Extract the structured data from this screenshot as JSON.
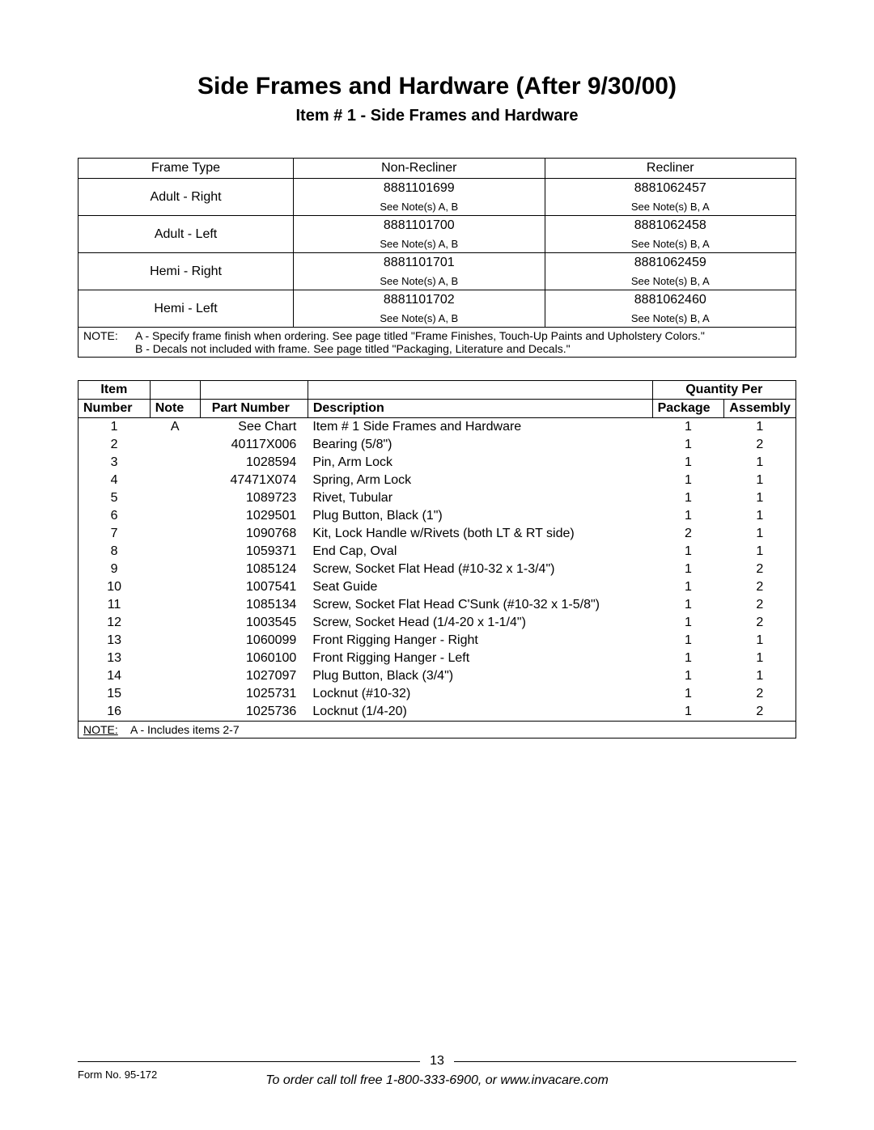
{
  "title": "Side Frames and Hardware (After 9/30/00)",
  "subtitle": "Item # 1 - Side Frames and Hardware",
  "frame_table": {
    "headers": [
      "Frame Type",
      "Non-Recliner",
      "Recliner"
    ],
    "rows": [
      {
        "label": "Adult - Right",
        "non_recliner": "8881101699",
        "non_recliner_note": "See Note(s) A, B",
        "recliner": "8881062457",
        "recliner_note": "See Note(s) B, A"
      },
      {
        "label": "Adult - Left",
        "non_recliner": "8881101700",
        "non_recliner_note": "See Note(s) A, B",
        "recliner": "8881062458",
        "recliner_note": "See Note(s) B, A"
      },
      {
        "label": "Hemi - Right",
        "non_recliner": "8881101701",
        "non_recliner_note": "See Note(s) A, B",
        "recliner": "8881062459",
        "recliner_note": "See Note(s) B, A"
      },
      {
        "label": "Hemi - Left",
        "non_recliner": "8881101702",
        "non_recliner_note": "See Note(s) A, B",
        "recliner": "8881062460",
        "recliner_note": "See Note(s) B, A"
      }
    ],
    "note_label": "NOTE:",
    "note_a": "A - Specify frame finish when ordering.  See page titled \"Frame Finishes, Touch-Up Paints and Upholstery Colors.\"",
    "note_b": "B - Decals not included with frame.  See page titled \"Packaging, Literature and Decals.\""
  },
  "parts_table": {
    "header_top": {
      "item": "Item",
      "qty": "Quantity Per"
    },
    "header": {
      "number": "Number",
      "note": "Note",
      "part": "Part Number",
      "desc": "Description",
      "pkg": "Package",
      "asm": "Assembly"
    },
    "rows": [
      {
        "item": "1",
        "note": "A",
        "part": "See Chart",
        "desc": "Item # 1 Side Frames and Hardware",
        "pkg": "1",
        "asm": "1"
      },
      {
        "item": "2",
        "note": "",
        "part": "40117X006",
        "desc": "Bearing (5/8\")",
        "pkg": "1",
        "asm": "2"
      },
      {
        "item": "3",
        "note": "",
        "part": "1028594",
        "desc": "Pin, Arm Lock",
        "pkg": "1",
        "asm": "1"
      },
      {
        "item": "4",
        "note": "",
        "part": "47471X074",
        "desc": "Spring, Arm Lock",
        "pkg": "1",
        "asm": "1"
      },
      {
        "item": "5",
        "note": "",
        "part": "1089723",
        "desc": "Rivet, Tubular",
        "pkg": "1",
        "asm": "1"
      },
      {
        "item": "6",
        "note": "",
        "part": "1029501",
        "desc": "Plug Button, Black (1\")",
        "pkg": "1",
        "asm": "1"
      },
      {
        "item": "7",
        "note": "",
        "part": "1090768",
        "desc": "Kit, Lock Handle w/Rivets (both LT & RT side)",
        "pkg": "2",
        "asm": "1"
      },
      {
        "item": "8",
        "note": "",
        "part": "1059371",
        "desc": "End Cap, Oval",
        "pkg": "1",
        "asm": "1"
      },
      {
        "item": "9",
        "note": "",
        "part": "1085124",
        "desc": "Screw, Socket Flat Head (#10-32 x 1-3/4\")",
        "pkg": "1",
        "asm": "2"
      },
      {
        "item": "10",
        "note": "",
        "part": "1007541",
        "desc": "Seat Guide",
        "pkg": "1",
        "asm": "2"
      },
      {
        "item": "11",
        "note": "",
        "part": "1085134",
        "desc": "Screw, Socket Flat Head C'Sunk (#10-32 x 1-5/8\")",
        "pkg": "1",
        "asm": "2"
      },
      {
        "item": "12",
        "note": "",
        "part": "1003545",
        "desc": "Screw, Socket Head (1/4-20 x 1-1/4\")",
        "pkg": "1",
        "asm": "2"
      },
      {
        "item": "13",
        "note": "",
        "part": "1060099",
        "desc": "Front Rigging Hanger - Right",
        "pkg": "1",
        "asm": "1"
      },
      {
        "item": "13",
        "note": "",
        "part": "1060100",
        "desc": "Front Rigging Hanger - Left",
        "pkg": "1",
        "asm": "1"
      },
      {
        "item": "14",
        "note": "",
        "part": "1027097",
        "desc": "Plug Button, Black (3/4\")",
        "pkg": "1",
        "asm": "1"
      },
      {
        "item": "15",
        "note": "",
        "part": "1025731",
        "desc": "Locknut (#10-32)",
        "pkg": "1",
        "asm": "2"
      },
      {
        "item": "16",
        "note": "",
        "part": "1025736",
        "desc": "Locknut (1/4-20)",
        "pkg": "1",
        "asm": "2"
      }
    ],
    "note_label": "NOTE:",
    "note_text": "A - Includes items 2-7"
  },
  "footer": {
    "page_number": "13",
    "form_no": "Form No.  95-172",
    "order_text": "To order call toll free 1-800-333-6900, or www.invacare.com"
  }
}
